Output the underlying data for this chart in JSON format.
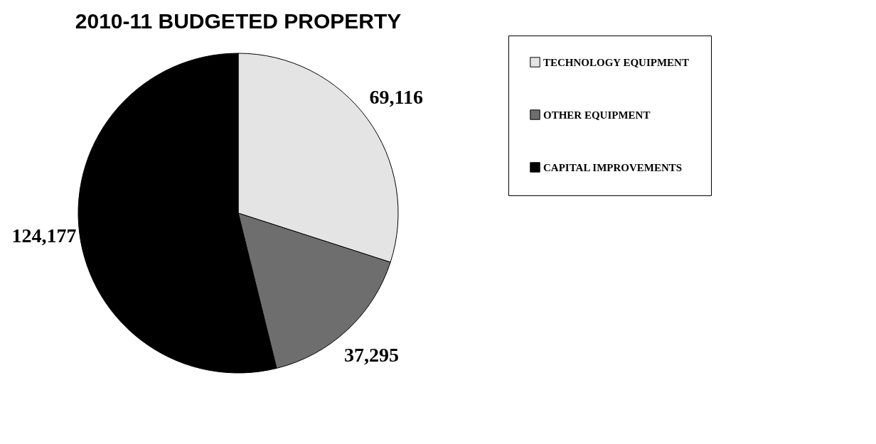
{
  "chart_data": {
    "type": "pie",
    "title": "2010-11 BUDGETED PROPERTY",
    "categories": [
      "TECHNOLOGY EQUIPMENT",
      "OTHER EQUIPMENT",
      "CAPITAL IMPROVEMENTS"
    ],
    "values": [
      69116,
      37295,
      124177
    ],
    "colors": [
      "#e4e4e4",
      "#6e6e6e",
      "#000000"
    ],
    "value_labels": [
      "69,116",
      "37,295",
      "124,177"
    ],
    "legend": "right"
  }
}
